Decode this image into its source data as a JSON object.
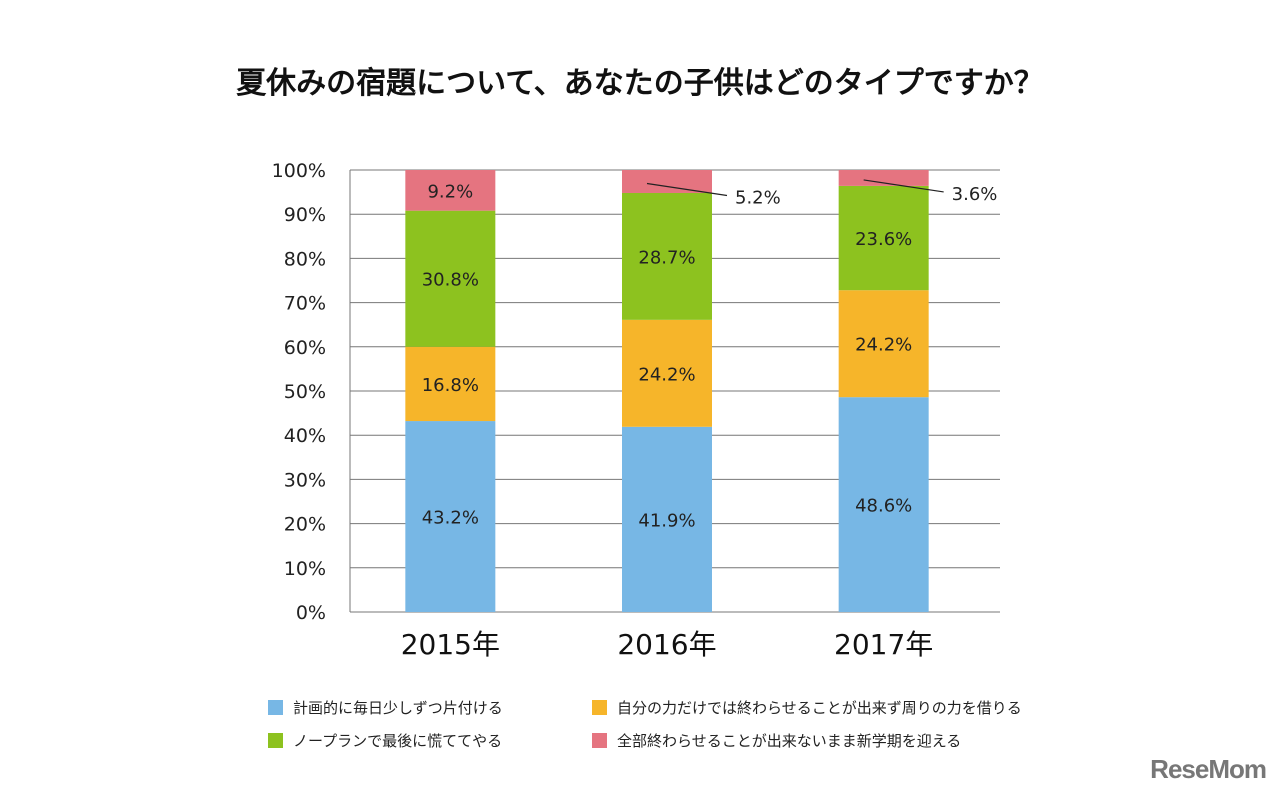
{
  "title": "夏休みの宿題について、あなたの子供はどのタイプですか？",
  "logo": "ReseMom",
  "chart_data": {
    "type": "bar",
    "stacked": true,
    "categories": [
      "2015年",
      "2016年",
      "2017年"
    ],
    "ylim": [
      0,
      100
    ],
    "yticks": [
      "0%",
      "10%",
      "20%",
      "30%",
      "40%",
      "50%",
      "60%",
      "70%",
      "80%",
      "90%",
      "100%"
    ],
    "grid": true,
    "legend_placement": "bottom",
    "series": [
      {
        "name": "計画的に毎日少しずつ片付ける",
        "color": "#77b7e5",
        "values": [
          43.2,
          41.9,
          48.6
        ],
        "labels": [
          "43.2%",
          "41.9%",
          "48.6%"
        ]
      },
      {
        "name": "自分の力だけでは終わらせることが出来ず周りの力を借りる",
        "color": "#f6b52a",
        "values": [
          16.8,
          24.2,
          24.2
        ],
        "labels": [
          "16.8%",
          "24.2%",
          "24.2%"
        ]
      },
      {
        "name": "ノープランで最後に慌ててやる",
        "color": "#8dc21f",
        "values": [
          30.8,
          28.7,
          23.6
        ],
        "labels": [
          "30.8%",
          "28.7%",
          "23.6%"
        ]
      },
      {
        "name": "全部終わらせることが出来ないまま新学期を迎える",
        "color": "#e57480",
        "values": [
          9.2,
          5.2,
          3.6
        ],
        "labels": [
          "9.2%",
          "5.2%",
          "3.6%"
        ]
      }
    ]
  }
}
